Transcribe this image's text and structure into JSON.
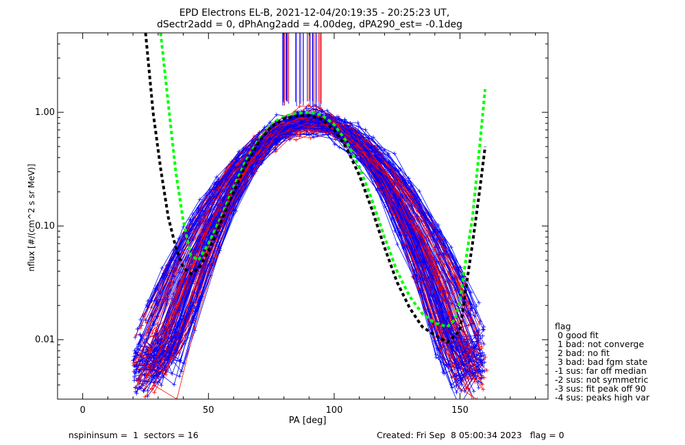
{
  "chart_data": {
    "type": "line",
    "title_line1": "EPD Electrons EL-B, 2021-12-04/20:19:35 - 20:25:23 UT,",
    "title_line2": "dSectr2add = 0, dPhAng2add = 4.00deg, dPA290_est=  -0.1deg",
    "xlabel": "PA [deg]",
    "ylabel": "nflux [#/(cm^2 s sr MeV)]",
    "xlim": [
      -10,
      185
    ],
    "ylim": [
      0.003,
      5
    ],
    "y_scale": "log",
    "x_ticks": [
      0,
      50,
      100,
      150
    ],
    "x_tick_labels": [
      "0",
      "50",
      "100",
      "150"
    ],
    "y_ticks": [
      0.01,
      0.1,
      1.0
    ],
    "y_tick_labels": [
      "0.01",
      "0.10",
      "1.00"
    ],
    "colors": {
      "red": "#ff0000",
      "blue": "#0000ff",
      "green": "#00ff00",
      "black": "#000000"
    },
    "series": [
      {
        "color": "#00ff00",
        "style": "dashed",
        "x": [
          31,
          34,
          37,
          40,
          43,
          46,
          50,
          55,
          60,
          65,
          70,
          75,
          80,
          85,
          90,
          95,
          100,
          105,
          110,
          115,
          120,
          125,
          130,
          135,
          140,
          145,
          148,
          150,
          152,
          155,
          158,
          160
        ],
        "y": [
          5.0,
          1.2,
          0.3,
          0.11,
          0.055,
          0.05,
          0.07,
          0.12,
          0.22,
          0.38,
          0.58,
          0.78,
          0.92,
          0.98,
          1.0,
          0.95,
          0.78,
          0.55,
          0.33,
          0.17,
          0.08,
          0.04,
          0.024,
          0.017,
          0.014,
          0.013,
          0.015,
          0.022,
          0.045,
          0.12,
          0.55,
          1.6
        ]
      },
      {
        "color": "#000000",
        "style": "dashed",
        "x": [
          25,
          28,
          31,
          34,
          37,
          40,
          43,
          46,
          50,
          55,
          60,
          65,
          70,
          75,
          80,
          85,
          90,
          95,
          100,
          105,
          110,
          115,
          120,
          125,
          130,
          135,
          140,
          145,
          150,
          152,
          155,
          158,
          160
        ],
        "y": [
          5.0,
          1.0,
          0.32,
          0.12,
          0.065,
          0.043,
          0.038,
          0.042,
          0.06,
          0.11,
          0.2,
          0.35,
          0.55,
          0.75,
          0.88,
          0.93,
          0.94,
          0.87,
          0.7,
          0.48,
          0.28,
          0.14,
          0.065,
          0.032,
          0.019,
          0.013,
          0.011,
          0.0095,
          0.012,
          0.025,
          0.07,
          0.22,
          0.5
        ]
      }
    ],
    "legend": {
      "position": "right",
      "title": "flag",
      "items": [
        " 0 good fit",
        " 1 bad: not converge",
        " 2 bad: no fit",
        " 3 bad: bad fgm state",
        "-1 sus: far off median",
        "-2 sus: not symmetric",
        "-3 sus: fit peak off 90",
        "-4 sus: peaks high var"
      ]
    }
  },
  "footer": {
    "left": "nspininsum =  1  sectors = 16",
    "right": "Created: Fri Sep  8 05:00:34 2023   flag = 0"
  }
}
